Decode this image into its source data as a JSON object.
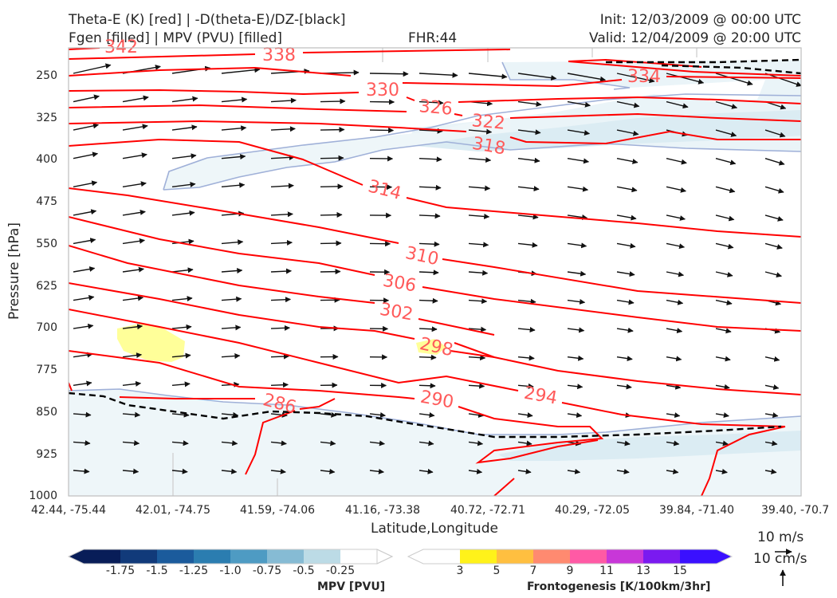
{
  "header": {
    "line1_left": "Theta-E (K) [red] | -D(theta-E)/DZ-[black]",
    "line2_left": "Fgen [filled] | MPV (PVU) [filled]",
    "fhr": "FHR:44",
    "init": "Init: 12/03/2009 @ 00:00 UTC",
    "valid": "Valid: 12/04/2009 @ 20:00 UTC"
  },
  "chart_data": {
    "type": "cross-section",
    "xlabel": "Latitude,Longitude",
    "ylabel": "Pressure [hPa]",
    "x_ticks": [
      "42.44, -75.44",
      "42.01, -74.75",
      "41.59, -74.06",
      "41.16, -73.38",
      "40.72, -72.71",
      "40.29, -72.05",
      "39.84, -71.40",
      "39.40, -70.7"
    ],
    "y_ticks": [
      250,
      325,
      400,
      475,
      550,
      625,
      700,
      775,
      850,
      925,
      1000
    ],
    "ylim": [
      1000,
      200
    ],
    "y_reversed": true,
    "theta_e_contour_labels": [
      342,
      338,
      334,
      330,
      326,
      322,
      318,
      314,
      310,
      306,
      302,
      298,
      294,
      290,
      286
    ],
    "theta_e_color": "#ff0000",
    "stability_color": "#000000",
    "vectors": [
      {
        "wind": "10 m/s"
      },
      {
        "vertical": "10 cm/s"
      }
    ],
    "colorbars": [
      {
        "title": "MPV [PVU]",
        "ticks": [
          "-1.75",
          "-1.5",
          "-1.25",
          "-1.0",
          "-0.75",
          "-0.5",
          "-0.25"
        ],
        "colors": [
          "#081d58",
          "#113a7a",
          "#1b5b9c",
          "#2b7db0",
          "#4e9bc3",
          "#86bbd4",
          "#bcdbe6",
          "#ffffff"
        ]
      },
      {
        "title": "Frontogenesis [K/100km/3hr]",
        "ticks": [
          "3",
          "5",
          "7",
          "9",
          "11",
          "13",
          "15"
        ],
        "colors": [
          "#ffffff",
          "#fff21a",
          "#ffbf40",
          "#ff8a70",
          "#ff5aa5",
          "#c837d8",
          "#7a1af0",
          "#3a10ff"
        ]
      }
    ],
    "grid": true
  }
}
